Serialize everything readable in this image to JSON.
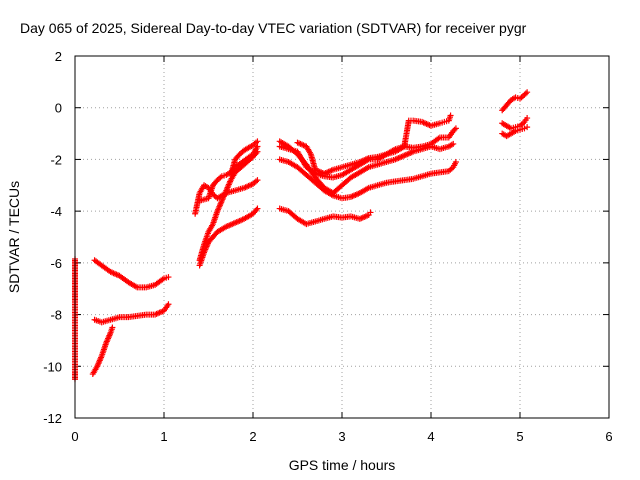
{
  "chart_data": {
    "type": "scatter",
    "title": "Day 065 of 2025, Sidereal Day-to-day VTEC variation (SDTVAR) for receiver pygr",
    "xlabel": "GPS time / hours",
    "ylabel": "SDTVAR / TECUs",
    "xlim": [
      0,
      6
    ],
    "ylim": [
      -12,
      2
    ],
    "xticks": [
      0,
      1,
      2,
      3,
      4,
      5,
      6
    ],
    "yticks": [
      -12,
      -10,
      -8,
      -6,
      -4,
      -2,
      0,
      2
    ],
    "grid": true,
    "marker": "+",
    "color": "#ff0000",
    "tracks": [
      [
        [
          0.0,
          -5.85
        ],
        [
          0.0,
          -8.3
        ],
        [
          0.0,
          -10.5
        ]
      ],
      [
        [
          0.22,
          -5.9
        ],
        [
          0.3,
          -6.1
        ],
        [
          0.4,
          -6.35
        ],
        [
          0.5,
          -6.5
        ],
        [
          0.6,
          -6.75
        ],
        [
          0.7,
          -6.95
        ],
        [
          0.8,
          -6.95
        ],
        [
          0.9,
          -6.85
        ],
        [
          1.0,
          -6.6
        ],
        [
          1.05,
          -6.55
        ]
      ],
      [
        [
          0.22,
          -8.2
        ],
        [
          0.3,
          -8.3
        ],
        [
          0.4,
          -8.2
        ],
        [
          0.5,
          -8.1
        ],
        [
          0.6,
          -8.1
        ],
        [
          0.7,
          -8.05
        ],
        [
          0.8,
          -8.0
        ],
        [
          0.9,
          -8.0
        ],
        [
          1.0,
          -7.85
        ],
        [
          1.05,
          -7.6
        ]
      ],
      [
        [
          0.2,
          -10.3
        ],
        [
          0.25,
          -10.0
        ],
        [
          0.3,
          -9.6
        ],
        [
          0.35,
          -9.1
        ],
        [
          0.4,
          -8.7
        ],
        [
          0.42,
          -8.5
        ]
      ],
      [
        [
          1.35,
          -4.1
        ],
        [
          1.4,
          -3.3
        ],
        [
          1.45,
          -3.0
        ],
        [
          1.5,
          -3.1
        ],
        [
          1.55,
          -3.35
        ],
        [
          1.6,
          -3.5
        ],
        [
          1.7,
          -3.3
        ],
        [
          1.8,
          -3.2
        ],
        [
          1.9,
          -3.1
        ],
        [
          2.0,
          -2.95
        ],
        [
          2.05,
          -2.8
        ]
      ],
      [
        [
          1.4,
          -3.6
        ],
        [
          1.5,
          -3.5
        ],
        [
          1.55,
          -3.0
        ],
        [
          1.6,
          -2.8
        ],
        [
          1.65,
          -2.65
        ],
        [
          1.7,
          -2.6
        ],
        [
          1.75,
          -2.5
        ],
        [
          1.8,
          -2.3
        ],
        [
          1.9,
          -2.05
        ],
        [
          2.0,
          -1.8
        ],
        [
          2.05,
          -1.5
        ]
      ],
      [
        [
          1.4,
          -6.1
        ],
        [
          1.45,
          -5.6
        ],
        [
          1.5,
          -5.2
        ],
        [
          1.55,
          -5.0
        ],
        [
          1.6,
          -4.8
        ],
        [
          1.7,
          -4.6
        ],
        [
          1.8,
          -4.45
        ],
        [
          1.9,
          -4.3
        ],
        [
          2.0,
          -4.1
        ],
        [
          2.05,
          -3.9
        ]
      ],
      [
        [
          1.4,
          -5.9
        ],
        [
          1.45,
          -5.3
        ],
        [
          1.5,
          -4.8
        ],
        [
          1.55,
          -4.5
        ],
        [
          1.6,
          -4.0
        ],
        [
          1.65,
          -3.6
        ],
        [
          1.7,
          -3.2
        ],
        [
          1.75,
          -2.8
        ],
        [
          1.8,
          -2.5
        ],
        [
          1.9,
          -2.2
        ],
        [
          2.0,
          -1.9
        ],
        [
          2.05,
          -1.7
        ]
      ],
      [
        [
          1.75,
          -2.6
        ],
        [
          1.8,
          -2.0
        ],
        [
          1.85,
          -1.8
        ],
        [
          1.9,
          -1.65
        ],
        [
          2.0,
          -1.45
        ],
        [
          2.05,
          -1.3
        ]
      ],
      [
        [
          2.3,
          -3.9
        ],
        [
          2.4,
          -4.0
        ],
        [
          2.5,
          -4.3
        ],
        [
          2.6,
          -4.5
        ],
        [
          2.7,
          -4.4
        ],
        [
          2.8,
          -4.3
        ],
        [
          2.9,
          -4.2
        ],
        [
          3.0,
          -4.25
        ],
        [
          3.1,
          -4.2
        ],
        [
          3.2,
          -4.3
        ],
        [
          3.3,
          -4.15
        ],
        [
          3.32,
          -4.05
        ]
      ],
      [
        [
          2.3,
          -1.5
        ],
        [
          2.4,
          -1.6
        ],
        [
          2.5,
          -1.7
        ],
        [
          2.6,
          -2.3
        ],
        [
          2.7,
          -2.55
        ],
        [
          2.8,
          -2.65
        ],
        [
          2.9,
          -2.7
        ],
        [
          3.0,
          -2.6
        ],
        [
          3.1,
          -2.4
        ],
        [
          3.2,
          -2.2
        ],
        [
          3.3,
          -2.0
        ],
        [
          3.4,
          -2.0
        ],
        [
          3.5,
          -1.8
        ],
        [
          3.6,
          -1.6
        ],
        [
          3.7,
          -1.5
        ],
        [
          3.8,
          -1.55
        ],
        [
          3.9,
          -1.5
        ],
        [
          4.0,
          -1.4
        ],
        [
          4.1,
          -1.15
        ],
        [
          4.2,
          -1.15
        ],
        [
          4.25,
          -0.9
        ],
        [
          4.28,
          -0.8
        ]
      ],
      [
        [
          2.3,
          -2.0
        ],
        [
          2.4,
          -2.1
        ],
        [
          2.5,
          -2.3
        ],
        [
          2.6,
          -2.6
        ],
        [
          2.7,
          -2.9
        ],
        [
          2.8,
          -3.2
        ],
        [
          2.9,
          -3.4
        ],
        [
          3.0,
          -3.5
        ],
        [
          3.1,
          -3.45
        ],
        [
          3.2,
          -3.3
        ],
        [
          3.3,
          -3.1
        ],
        [
          3.4,
          -3.0
        ],
        [
          3.5,
          -2.9
        ],
        [
          3.6,
          -2.85
        ],
        [
          3.7,
          -2.8
        ],
        [
          3.8,
          -2.75
        ],
        [
          3.9,
          -2.65
        ],
        [
          4.0,
          -2.55
        ],
        [
          4.1,
          -2.5
        ],
        [
          4.2,
          -2.45
        ],
        [
          4.25,
          -2.3
        ],
        [
          4.28,
          -2.1
        ]
      ],
      [
        [
          2.3,
          -1.3
        ],
        [
          2.4,
          -1.5
        ],
        [
          2.5,
          -1.8
        ],
        [
          2.6,
          -2.2
        ],
        [
          2.7,
          -2.7
        ],
        [
          2.8,
          -3.1
        ],
        [
          2.9,
          -3.3
        ],
        [
          3.0,
          -3.0
        ],
        [
          3.1,
          -2.7
        ],
        [
          3.2,
          -2.5
        ],
        [
          3.3,
          -2.3
        ],
        [
          3.4,
          -2.2
        ],
        [
          3.5,
          -2.1
        ],
        [
          3.6,
          -2.0
        ],
        [
          3.7,
          -1.85
        ],
        [
          3.8,
          -1.7
        ],
        [
          3.9,
          -1.6
        ],
        [
          4.0,
          -1.5
        ],
        [
          4.1,
          -1.6
        ],
        [
          4.2,
          -1.5
        ],
        [
          4.25,
          -1.4
        ]
      ],
      [
        [
          2.5,
          -1.35
        ],
        [
          2.6,
          -1.5
        ],
        [
          2.65,
          -1.8
        ],
        [
          2.7,
          -2.4
        ],
        [
          2.8,
          -2.55
        ],
        [
          2.9,
          -2.4
        ],
        [
          3.0,
          -2.3
        ],
        [
          3.1,
          -2.2
        ],
        [
          3.2,
          -2.1
        ],
        [
          3.3,
          -1.95
        ],
        [
          3.4,
          -1.9
        ],
        [
          3.5,
          -1.8
        ],
        [
          3.6,
          -1.7
        ],
        [
          3.7,
          -1.5
        ],
        [
          3.75,
          -0.5
        ],
        [
          3.8,
          -0.5
        ],
        [
          3.9,
          -0.55
        ],
        [
          4.0,
          -0.7
        ],
        [
          4.1,
          -0.6
        ],
        [
          4.15,
          -0.55
        ],
        [
          4.2,
          -0.5
        ],
        [
          4.22,
          -0.3
        ]
      ],
      [
        [
          4.8,
          -0.1
        ],
        [
          4.85,
          0.1
        ],
        [
          4.9,
          0.3
        ],
        [
          4.95,
          0.4
        ],
        [
          5.0,
          0.35
        ],
        [
          5.05,
          0.5
        ],
        [
          5.08,
          0.6
        ]
      ],
      [
        [
          4.8,
          -0.6
        ],
        [
          4.85,
          -0.7
        ],
        [
          4.9,
          -0.8
        ],
        [
          4.95,
          -0.75
        ],
        [
          5.0,
          -0.7
        ],
        [
          5.05,
          -0.55
        ],
        [
          5.08,
          -0.4
        ]
      ],
      [
        [
          4.8,
          -1.0
        ],
        [
          4.85,
          -1.1
        ],
        [
          4.9,
          -1.0
        ],
        [
          4.95,
          -0.9
        ],
        [
          5.0,
          -0.85
        ],
        [
          5.05,
          -0.8
        ],
        [
          5.08,
          -0.75
        ]
      ]
    ]
  }
}
